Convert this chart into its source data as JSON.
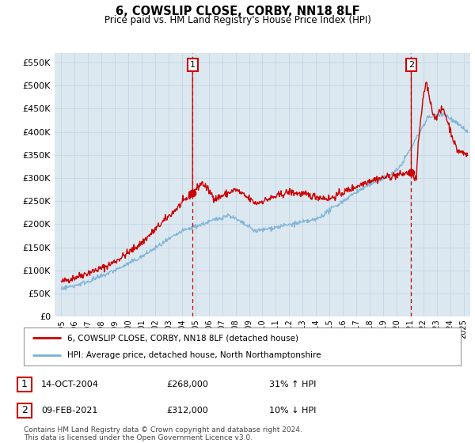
{
  "title": "6, COWSLIP CLOSE, CORBY, NN18 8LF",
  "subtitle": "Price paid vs. HM Land Registry's House Price Index (HPI)",
  "ytick_values": [
    0,
    50000,
    100000,
    150000,
    200000,
    250000,
    300000,
    350000,
    400000,
    450000,
    500000,
    550000
  ],
  "ylim": [
    0,
    570000
  ],
  "xlim_start": 1994.5,
  "xlim_end": 2025.5,
  "grid_color": "#c8d8e8",
  "plot_bg_color": "#dce8f0",
  "fig_bg_color": "#ffffff",
  "red_line_color": "#cc0000",
  "blue_line_color": "#7ab0d4",
  "marker1_x": 2004.79,
  "marker1_y": 268000,
  "marker1_label": "1",
  "marker2_x": 2021.1,
  "marker2_y": 312000,
  "marker2_label": "2",
  "vline_color": "#cc0000",
  "legend_line1": "6, COWSLIP CLOSE, CORBY, NN18 8LF (detached house)",
  "legend_line2": "HPI: Average price, detached house, North Northamptonshire",
  "annotation1_date": "14-OCT-2004",
  "annotation1_price": "£268,000",
  "annotation1_hpi": "31% ↑ HPI",
  "annotation2_date": "09-FEB-2021",
  "annotation2_price": "£312,000",
  "annotation2_hpi": "10% ↓ HPI",
  "footnote": "Contains HM Land Registry data © Crown copyright and database right 2024.\nThis data is licensed under the Open Government Licence v3.0.",
  "xtick_years": [
    1995,
    1996,
    1997,
    1998,
    1999,
    2000,
    2001,
    2002,
    2003,
    2004,
    2005,
    2006,
    2007,
    2008,
    2009,
    2010,
    2011,
    2012,
    2013,
    2014,
    2015,
    2016,
    2017,
    2018,
    2019,
    2020,
    2021,
    2022,
    2023,
    2024,
    2025
  ]
}
